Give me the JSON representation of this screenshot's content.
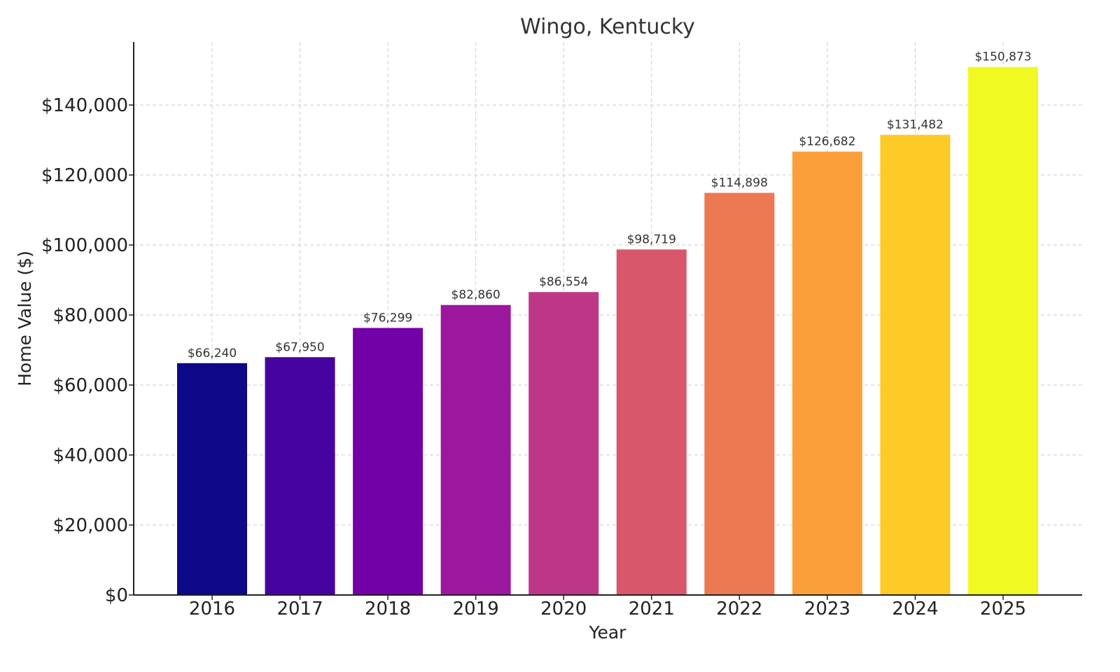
{
  "chart_data": {
    "type": "bar",
    "title": "Wingo, Kentucky",
    "xlabel": "Year",
    "ylabel": "Home Value ($)",
    "categories": [
      "2016",
      "2017",
      "2018",
      "2019",
      "2020",
      "2021",
      "2022",
      "2023",
      "2024",
      "2025"
    ],
    "values": [
      66240,
      67950,
      76299,
      82860,
      86554,
      98719,
      114898,
      126682,
      131482,
      150873
    ],
    "value_labels": [
      "$66,240",
      "$67,950",
      "$76,299",
      "$82,860",
      "$86,554",
      "$98,719",
      "$114,898",
      "$126,682",
      "$131,482",
      "$150,873"
    ],
    "bar_colors": [
      "#0d0887",
      "#46039f",
      "#7201a8",
      "#9c179e",
      "#bd3786",
      "#d8576b",
      "#ed7953",
      "#fb9f3a",
      "#fdca26",
      "#f0f921"
    ],
    "yticks": [
      0,
      20000,
      40000,
      60000,
      80000,
      100000,
      120000,
      140000
    ],
    "ytick_labels": [
      "$0",
      "$20,000",
      "$40,000",
      "$60,000",
      "$80,000",
      "$100,000",
      "$120,000",
      "$140,000"
    ],
    "ylim": [
      0,
      158000
    ],
    "grid": true,
    "grid_color": "#cccccc",
    "axis_color": "#222222"
  }
}
